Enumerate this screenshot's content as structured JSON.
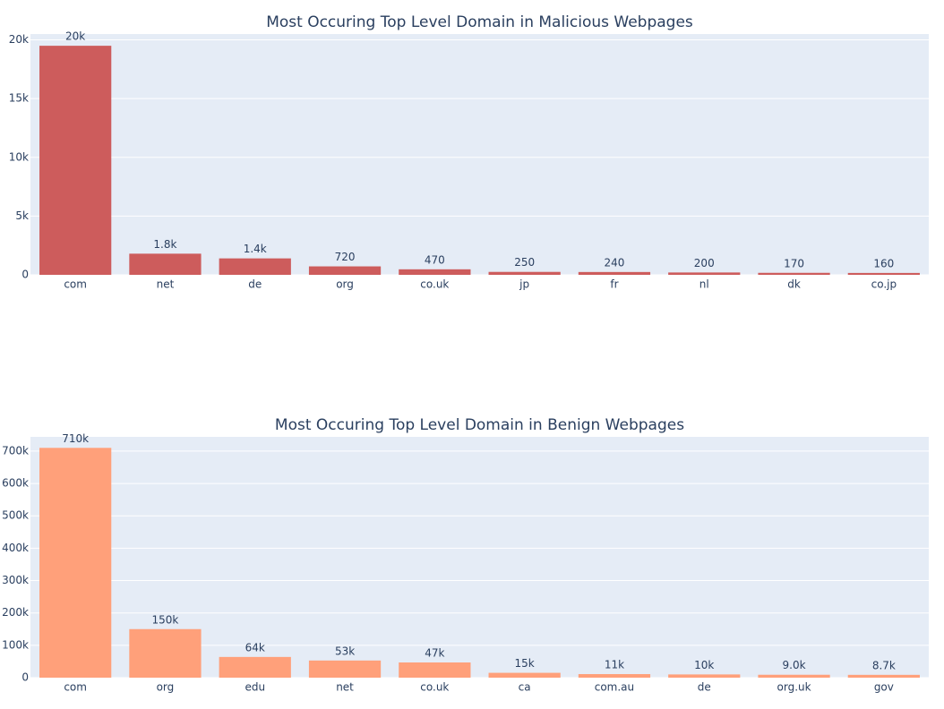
{
  "chart_data": [
    {
      "type": "bar",
      "title": "Most Occuring Top Level Domain in Malicious Webpages",
      "categories": [
        "com",
        "net",
        "de",
        "org",
        "co.uk",
        "jp",
        "fr",
        "nl",
        "dk",
        "co.jp"
      ],
      "values": [
        19500,
        1800,
        1400,
        720,
        470,
        250,
        240,
        200,
        170,
        160
      ],
      "value_labels": [
        "20k",
        "1.8k",
        "1.4k",
        "720",
        "470",
        "250",
        "240",
        "200",
        "170",
        "160"
      ],
      "color": "#cd5c5c",
      "ylim": [
        0,
        20500
      ],
      "yticks": [
        0,
        {
          "value": 5000,
          "label": "5k"
        },
        {
          "value": 10000,
          "label": "10k"
        },
        {
          "value": 15000,
          "label": "15k"
        },
        {
          "value": 20000,
          "label": "20k"
        }
      ],
      "grid": true
    },
    {
      "type": "bar",
      "title": "Most Occuring Top Level Domain in Benign Webpages",
      "categories": [
        "com",
        "org",
        "edu",
        "net",
        "co.uk",
        "ca",
        "com.au",
        "de",
        "org.uk",
        "gov"
      ],
      "values": [
        710000,
        150000,
        64000,
        53000,
        47000,
        15000,
        11000,
        10000,
        9000,
        8700
      ],
      "value_labels": [
        "710k",
        "150k",
        "64k",
        "53k",
        "47k",
        "15k",
        "11k",
        "10k",
        "9.0k",
        "8.7k"
      ],
      "color": "#ffa07a",
      "ylim": [
        0,
        744000
      ],
      "yticks": [
        0,
        {
          "value": 100000,
          "label": "100k"
        },
        {
          "value": 200000,
          "label": "200k"
        },
        {
          "value": 300000,
          "label": "300k"
        },
        {
          "value": 400000,
          "label": "400k"
        },
        {
          "value": 500000,
          "label": "500k"
        },
        {
          "value": 600000,
          "label": "600k"
        },
        {
          "value": 700000,
          "label": "700k"
        }
      ],
      "grid": true
    }
  ]
}
